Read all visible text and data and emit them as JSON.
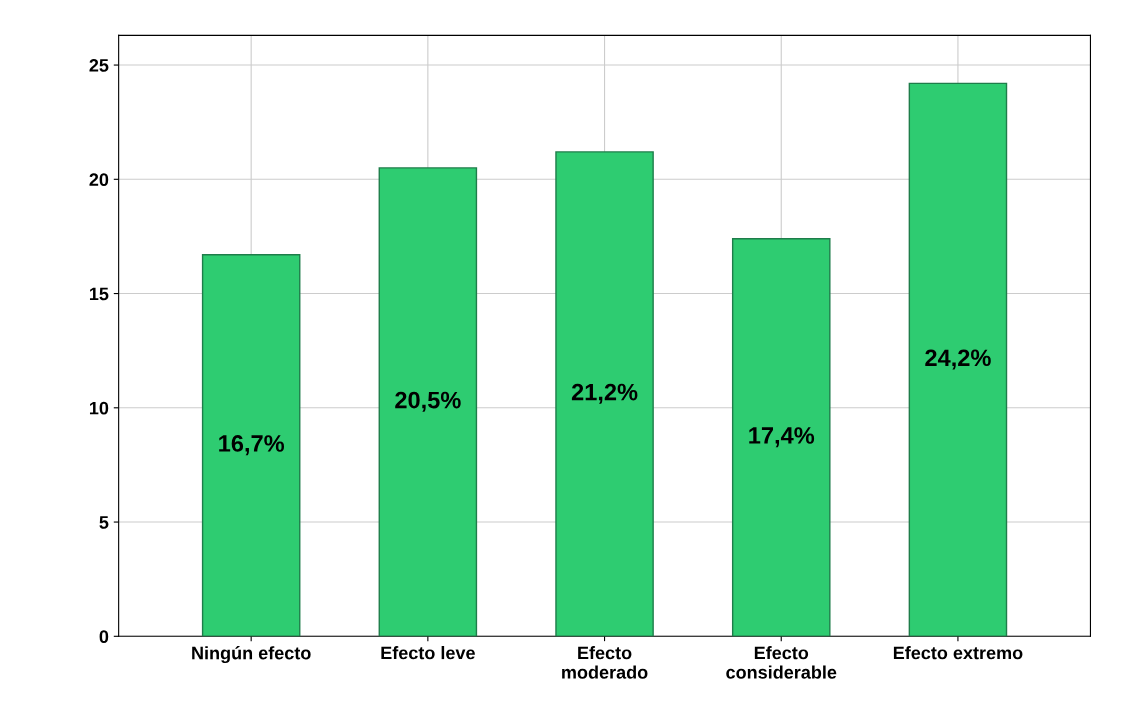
{
  "chart_data": {
    "type": "bar",
    "categories": [
      "Ningún efecto",
      "Efecto leve",
      "Efecto moderado",
      "Efecto considerable",
      "Efecto extremo"
    ],
    "values": [
      16.7,
      20.5,
      21.2,
      17.4,
      24.2
    ],
    "value_labels": [
      "16,7%",
      "20,5%",
      "21,2%",
      "17,4%",
      "24,2%"
    ],
    "color": "#2ecc71",
    "ylim": [
      0,
      26.3
    ],
    "yticks": [
      0,
      5,
      10,
      15,
      20,
      25
    ],
    "grid": true
  }
}
